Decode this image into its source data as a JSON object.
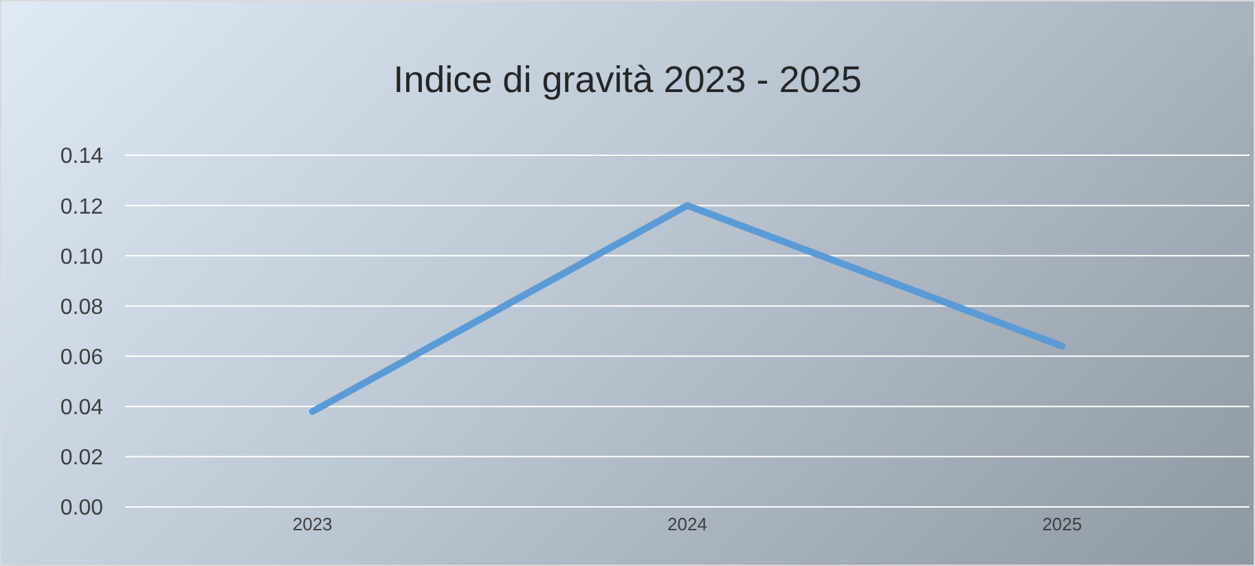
{
  "chart_data": {
    "type": "line",
    "title": "Indice di gravità 2023 - 2025",
    "categories": [
      "2023",
      "2024",
      "2025"
    ],
    "series": [
      {
        "color": "#5b9bd5",
        "values": [
          0.038,
          0.12,
          0.064
        ]
      }
    ],
    "ylim": [
      0,
      0.14
    ],
    "yticks": [
      {
        "value": 0,
        "label": "0.00"
      },
      {
        "value": 0.02,
        "label": "0.02"
      },
      {
        "value": 0.04,
        "label": "0.04"
      },
      {
        "value": 0.06,
        "label": "0.06"
      },
      {
        "value": 0.08,
        "label": "0.08"
      },
      {
        "value": 0.1,
        "label": "0.10"
      },
      {
        "value": 0.12,
        "label": "0.12"
      },
      {
        "value": 0.14,
        "label": "0.14"
      }
    ],
    "grid": "y",
    "marker": "none",
    "line_style": "solid"
  }
}
